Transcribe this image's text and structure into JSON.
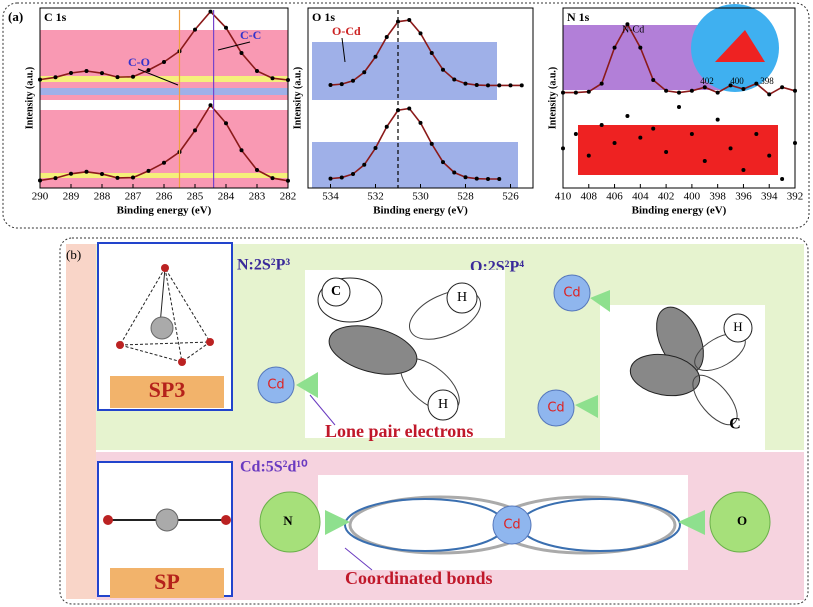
{
  "panel_a_label": "(a)",
  "chart_data": [
    {
      "type": "line",
      "title": "C 1s",
      "xlabel": "Binding energy (eV)",
      "ylabel": "Intensity (a.u.)",
      "xlim": [
        290,
        282
      ],
      "xticks": [
        290,
        289,
        288,
        287,
        286,
        285,
        284,
        283,
        282
      ],
      "ylim": [
        0,
        100
      ],
      "series": [
        {
          "color": "#8b1a1a",
          "marker_color": "#000000",
          "x": [
            290,
            289.5,
            289,
            288.5,
            288,
            287.5,
            287,
            286.5,
            286,
            285.5,
            285,
            284.5,
            284,
            283.5,
            283,
            282.5,
            282
          ],
          "values": [
            60.2,
            61.5,
            63.9,
            65,
            63.8,
            61.6,
            61.8,
            65.5,
            70,
            76,
            88,
            98,
            89,
            75,
            65,
            61,
            60
          ]
        },
        {
          "color": "#8b1a1a",
          "marker_color": "#000000",
          "x": [
            290,
            289.5,
            289,
            288.5,
            288,
            287.5,
            287,
            286.5,
            286,
            285.5,
            285,
            284.5,
            284,
            283.5,
            283,
            282.5,
            282
          ],
          "values": [
            4.2,
            5.5,
            7.9,
            9,
            7.8,
            5.6,
            5.8,
            9.5,
            14,
            20,
            32,
            46,
            36,
            21,
            10,
            5.5,
            4
          ]
        }
      ],
      "reference_lines": [
        {
          "x": 285.5,
          "color": "#f0a040",
          "label": "C-O",
          "label_color": "#3333cc"
        },
        {
          "x": 284.4,
          "color": "#7744cc",
          "label": "C-C",
          "label_color": "#3333cc"
        }
      ]
    },
    {
      "type": "line",
      "title": "O 1s",
      "xlabel": "Binding energy (eV)",
      "ylabel": "Intensity (a.u.)",
      "xlim": [
        535,
        525
      ],
      "xticks": [
        534,
        532,
        530,
        528,
        526
      ],
      "ylim": [
        0,
        100
      ],
      "series": [
        {
          "color": "#8b1a1a",
          "marker_color": "#000000",
          "x": [
            534,
            533.5,
            533,
            532.5,
            532,
            531.5,
            531,
            530.5,
            530,
            529.5,
            529,
            528.5,
            528,
            527.5,
            527,
            526.5,
            526,
            525.5
          ],
          "values": [
            57.2,
            57.7,
            59.6,
            64.3,
            72.9,
            83.9,
            92.4,
            93.3,
            85.9,
            75,
            65.7,
            60.3,
            58,
            57.2,
            57,
            57,
            57,
            57
          ]
        },
        {
          "color": "#8b1a1a",
          "marker_color": "#000000",
          "x": [
            534,
            533.5,
            533,
            532.5,
            532,
            531.5,
            531,
            530.5,
            530,
            529.5,
            529,
            528.5,
            528,
            527.5,
            527,
            526.5
          ],
          "values": [
            5.2,
            5.8,
            7.8,
            12.9,
            22.2,
            34,
            43.2,
            44.2,
            36.2,
            24.5,
            14.4,
            8.6,
            6,
            5.2,
            5,
            5
          ]
        }
      ],
      "reference_lines": [
        {
          "x": 531,
          "color": "#000000",
          "label": "O-Cd",
          "label_color": "#cc2222",
          "dash": true
        }
      ]
    },
    {
      "type": "line",
      "title": "N 1s",
      "xlabel": "Binding energy (eV)",
      "ylabel": "Intensity (a.u.)",
      "xlim": [
        410,
        392
      ],
      "xticks": [
        410,
        408,
        406,
        404,
        402,
        400,
        398,
        396,
        394,
        392
      ],
      "ylim": [
        0,
        100
      ],
      "annotation": "N-Cd",
      "inset_xticks": [
        402,
        400,
        398
      ],
      "series": [
        {
          "color": "#8b1a1a",
          "marker_color": "#000000",
          "x": [
            410,
            409,
            408,
            407,
            406,
            405,
            404,
            403,
            402,
            401,
            400,
            399,
            398,
            397,
            396,
            395,
            394,
            393,
            392
          ],
          "values": [
            53,
            53,
            53.5,
            58,
            78,
            91,
            78,
            60,
            54,
            53,
            54,
            56,
            53,
            57,
            55,
            58,
            52,
            56,
            54
          ]
        },
        {
          "color": "#000000",
          "marker_color": "#000000",
          "x": [
            410,
            409,
            408,
            407,
            406,
            405,
            404,
            403,
            402,
            401,
            400,
            399,
            398,
            397,
            396,
            395,
            394,
            393,
            392
          ],
          "values": [
            22,
            30,
            18,
            35,
            25,
            40,
            28,
            33,
            20,
            45,
            30,
            15,
            38,
            22,
            10,
            30,
            18,
            5,
            25
          ]
        }
      ]
    }
  ],
  "diagram": {
    "panel_label": "(b)",
    "n_config": "N:2S²P³",
    "o_config": "O:2S²P⁴",
    "cd_config": "Cd:5S²d¹⁰",
    "sp3_label": "SP3",
    "sp_label": "SP",
    "lone_pair": "Lone pair electrons",
    "coordinated": "Coordinated bonds",
    "n_orbital_atoms": [
      "C",
      "H",
      "H",
      "Cd"
    ],
    "o_orbital_atoms": [
      "H",
      "C",
      "Cd",
      "Cd"
    ],
    "bond_atoms": [
      "N",
      "Cd",
      "O"
    ]
  }
}
